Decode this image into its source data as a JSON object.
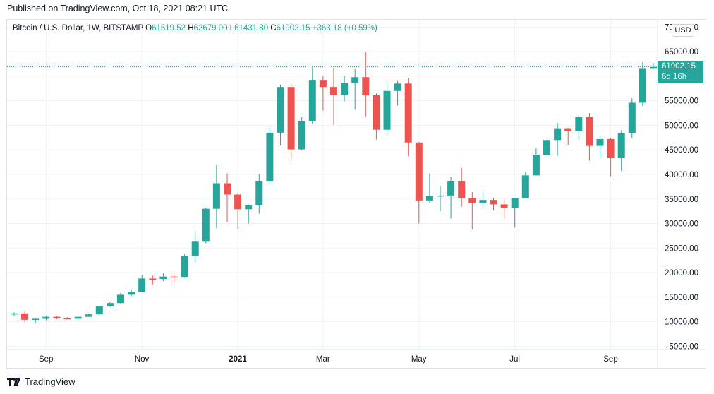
{
  "header": {
    "published": "Published on TradingView.com, Oct 18, 2021 08:21 UTC"
  },
  "legend": {
    "symbol": "Bitcoin / U.S. Dollar, 1W, BITSTAMP",
    "o_label": "O",
    "o": "61519.52",
    "h_label": "H",
    "h": "62679.00",
    "l_label": "L",
    "l": "61431.80",
    "c_label": "C",
    "c": "61902.15",
    "change": "+363.18 (+0.59%)"
  },
  "currency": "USD",
  "last_price": {
    "price": "61902.15",
    "countdown": "6d 16h"
  },
  "footer": {
    "brand": "TradingView"
  },
  "colors": {
    "up": "#26a69a",
    "down": "#ef5350",
    "grid": "#f0f3fa",
    "axis_text": "#131722"
  },
  "chart_data": {
    "type": "candlestick",
    "interval": "1W",
    "y_ticks": [
      5000,
      10000,
      15000,
      20000,
      25000,
      30000,
      35000,
      40000,
      45000,
      50000,
      55000,
      60000,
      65000,
      70000
    ],
    "y_tick_labels": [
      "5000.00",
      "10000.00",
      "15000.00",
      "20000.00",
      "25000.00",
      "30000.00",
      "35000.00",
      "40000.00",
      "45000.00",
      "50000.00",
      "55000.00",
      "",
      "65000.00",
      "70000.00"
    ],
    "x_labels": [
      {
        "label": "Sep",
        "bold": false,
        "candle": 2
      },
      {
        "label": "Nov",
        "bold": false,
        "candle": 11
      },
      {
        "label": "2021",
        "bold": true,
        "candle": 20
      },
      {
        "label": "Mar",
        "bold": false,
        "candle": 28
      },
      {
        "label": "May",
        "bold": false,
        "candle": 37
      },
      {
        "label": "Jul",
        "bold": false,
        "candle": 46
      },
      {
        "label": "Sep",
        "bold": false,
        "candle": 55
      }
    ],
    "candles": [
      [
        11650,
        11900,
        11200,
        11700
      ],
      [
        11700,
        12050,
        9900,
        10400
      ],
      [
        10400,
        10800,
        9800,
        10600
      ],
      [
        10600,
        11200,
        10300,
        11000
      ],
      [
        11000,
        11100,
        10500,
        10700
      ],
      [
        10700,
        10900,
        10500,
        10600
      ],
      [
        10600,
        11100,
        10400,
        11000
      ],
      [
        11000,
        11700,
        11000,
        11500
      ],
      [
        11500,
        13200,
        11400,
        13100
      ],
      [
        13100,
        14100,
        13000,
        13800
      ],
      [
        13800,
        15900,
        13600,
        15500
      ],
      [
        15500,
        16500,
        15200,
        16100
      ],
      [
        16100,
        19500,
        16000,
        18800
      ],
      [
        18800,
        19400,
        17600,
        18700
      ],
      [
        18700,
        19900,
        18300,
        19200
      ],
      [
        19200,
        19600,
        17800,
        19000
      ],
      [
        19000,
        23700,
        18900,
        23400
      ],
      [
        23400,
        28400,
        22100,
        26300
      ],
      [
        26300,
        33200,
        26000,
        33000
      ],
      [
        33000,
        42000,
        29000,
        38200
      ],
      [
        38200,
        40200,
        30300,
        35900
      ],
      [
        35900,
        36200,
        28800,
        32900
      ],
      [
        32900,
        33900,
        30000,
        33700
      ],
      [
        33700,
        40000,
        32000,
        38600
      ],
      [
        38600,
        49500,
        38100,
        48500
      ],
      [
        48500,
        58300,
        45900,
        57800
      ],
      [
        57800,
        58300,
        43100,
        45100
      ],
      [
        45100,
        51700,
        44900,
        50900
      ],
      [
        50900,
        61800,
        50300,
        59100
      ],
      [
        59100,
        60000,
        53000,
        57800
      ],
      [
        57800,
        61600,
        50100,
        56200
      ],
      [
        56200,
        60100,
        54900,
        58600
      ],
      [
        58600,
        61400,
        53200,
        59800
      ],
      [
        59800,
        64900,
        51800,
        56100
      ],
      [
        56100,
        56500,
        47100,
        49100
      ],
      [
        49100,
        58600,
        48000,
        57000
      ],
      [
        57000,
        59000,
        54000,
        58500
      ],
      [
        58500,
        59600,
        43700,
        46500
      ],
      [
        46500,
        46600,
        30000,
        34700
      ],
      [
        34700,
        40200,
        34100,
        35600
      ],
      [
        35600,
        37600,
        32500,
        35700
      ],
      [
        35700,
        39500,
        31000,
        38600
      ],
      [
        38600,
        41300,
        33400,
        35200
      ],
      [
        35200,
        36400,
        28800,
        34200
      ],
      [
        34200,
        36600,
        33200,
        34800
      ],
      [
        34800,
        35200,
        32700,
        33900
      ],
      [
        33900,
        35000,
        31100,
        33200
      ],
      [
        33200,
        35200,
        29200,
        35200
      ],
      [
        35200,
        40500,
        35100,
        39800
      ],
      [
        39800,
        45300,
        39800,
        44000
      ],
      [
        44000,
        47000,
        43900,
        47000
      ],
      [
        47000,
        50500,
        43800,
        49400
      ],
      [
        49400,
        49500,
        46000,
        48800
      ],
      [
        48800,
        52000,
        47100,
        51700
      ],
      [
        51700,
        52500,
        42800,
        45800
      ],
      [
        45800,
        48000,
        43400,
        47200
      ],
      [
        47200,
        47500,
        39600,
        43300
      ],
      [
        43300,
        49000,
        40700,
        48400
      ],
      [
        48400,
        55500,
        47400,
        54600
      ],
      [
        54600,
        62900,
        53900,
        61500
      ],
      [
        61519.52,
        62679,
        61431.8,
        61902.15
      ]
    ]
  }
}
